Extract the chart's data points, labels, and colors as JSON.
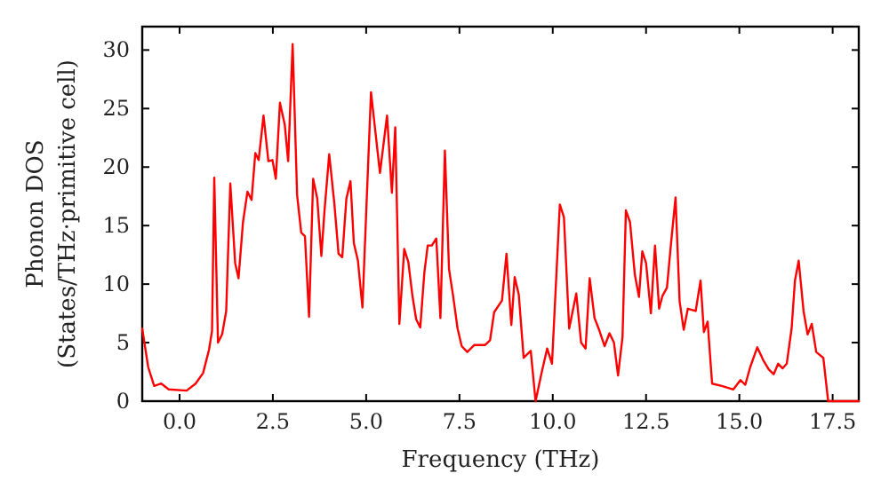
{
  "chart_data": {
    "type": "line",
    "xlabel": "Frequency (THz)",
    "ylabel": "Phonon DOS\n(States/THz·primitive cell)",
    "xlim": [
      -1.0,
      18.2
    ],
    "ylim": [
      0,
      32
    ],
    "xticks": [
      {
        "value": 0,
        "label": "0.0"
      },
      {
        "value": 2.5,
        "label": "2.5"
      },
      {
        "value": 5,
        "label": "5.0"
      },
      {
        "value": 7.5,
        "label": "7.5"
      },
      {
        "value": 10,
        "label": "10.0"
      },
      {
        "value": 12.5,
        "label": "12.5"
      },
      {
        "value": 15,
        "label": "15.0"
      },
      {
        "value": 17.5,
        "label": "17.5"
      }
    ],
    "yticks": [
      0,
      5,
      10,
      15,
      20,
      25,
      30
    ],
    "grid": false,
    "marker": "none",
    "line_style": "solid",
    "x": [
      -1.0,
      -0.84,
      -0.68,
      -0.49,
      -0.29,
      0.19,
      0.43,
      0.63,
      0.79,
      0.87,
      0.93,
      1.03,
      1.14,
      1.25,
      1.36,
      1.49,
      1.58,
      1.7,
      1.82,
      1.93,
      2.03,
      2.12,
      2.25,
      2.38,
      2.49,
      2.58,
      2.69,
      2.82,
      2.91,
      3.03,
      3.15,
      3.26,
      3.36,
      3.47,
      3.58,
      3.69,
      3.8,
      3.88,
      4.01,
      4.15,
      4.26,
      4.36,
      4.47,
      4.58,
      4.67,
      4.78,
      4.9,
      5.13,
      5.37,
      5.56,
      5.69,
      5.78,
      5.89,
      6.02,
      6.13,
      6.24,
      6.34,
      6.45,
      6.56,
      6.65,
      6.76,
      6.88,
      6.99,
      7.11,
      7.22,
      7.33,
      7.45,
      7.56,
      7.71,
      7.9,
      8.19,
      8.32,
      8.43,
      8.64,
      8.76,
      8.89,
      8.98,
      9.09,
      9.22,
      9.41,
      9.54,
      9.7,
      9.85,
      9.98,
      10.19,
      10.3,
      10.44,
      10.63,
      10.76,
      10.88,
      10.99,
      11.12,
      11.23,
      11.39,
      11.52,
      11.64,
      11.75,
      11.87,
      11.96,
      12.07,
      12.2,
      12.31,
      12.4,
      12.5,
      12.63,
      12.74,
      12.85,
      12.94,
      13.06,
      13.17,
      13.29,
      13.4,
      13.51,
      13.62,
      13.83,
      13.96,
      14.05,
      14.15,
      14.27,
      14.53,
      14.84,
      15.03,
      15.16,
      15.29,
      15.48,
      15.64,
      15.79,
      15.92,
      16.04,
      16.16,
      16.27,
      16.4,
      16.49,
      16.59,
      16.72,
      16.83,
      16.94,
      17.06,
      17.25,
      17.38,
      18.2
    ],
    "series": [
      {
        "color": "#ff0000",
        "values": [
          6.2,
          2.9,
          1.3,
          1.5,
          1.0,
          0.9,
          1.5,
          2.4,
          4.4,
          6.0,
          19.1,
          5.0,
          5.7,
          7.7,
          18.6,
          11.8,
          10.5,
          15.3,
          17.9,
          17.2,
          21.2,
          20.6,
          24.4,
          20.5,
          20.6,
          19.0,
          25.5,
          23.6,
          20.5,
          30.5,
          17.6,
          14.4,
          14.1,
          7.2,
          19.0,
          17.3,
          12.4,
          16.1,
          21.1,
          16.8,
          12.6,
          12.3,
          17.3,
          18.8,
          13.5,
          12.0,
          8.0,
          26.4,
          19.5,
          24.4,
          17.8,
          23.4,
          6.6,
          13.0,
          11.9,
          9.0,
          7.0,
          6.3,
          11.0,
          13.3,
          13.3,
          13.9,
          7.1,
          21.4,
          11.3,
          9.0,
          6.2,
          4.7,
          4.2,
          4.8,
          4.8,
          5.2,
          7.6,
          8.6,
          12.6,
          6.5,
          10.6,
          9.1,
          3.7,
          4.3,
          0.0,
          2.4,
          4.5,
          3.2,
          16.8,
          15.7,
          6.2,
          9.2,
          5.0,
          4.5,
          10.5,
          7.1,
          6.2,
          4.7,
          5.8,
          5.0,
          2.2,
          5.5,
          16.3,
          15.3,
          10.8,
          8.9,
          12.8,
          11.8,
          7.5,
          13.3,
          7.9,
          9.0,
          9.7,
          13.5,
          17.4,
          8.5,
          6.1,
          7.9,
          7.7,
          10.3,
          5.9,
          6.8,
          1.5,
          1.3,
          1.0,
          1.8,
          1.4,
          2.9,
          4.6,
          3.5,
          2.7,
          2.3,
          3.2,
          2.8,
          3.2,
          6.2,
          10.3,
          12.0,
          7.7,
          5.7,
          6.6,
          4.2,
          3.7,
          0.0,
          0.0
        ]
      }
    ]
  }
}
